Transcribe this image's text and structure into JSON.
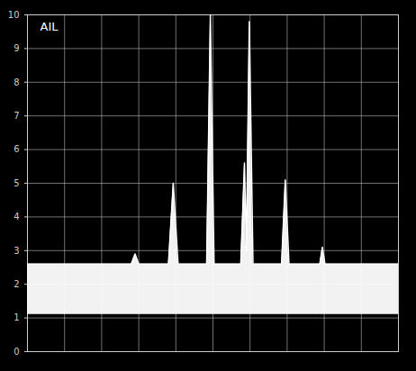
{
  "chart_data": {
    "type": "line",
    "title": "AIL",
    "x": [
      0,
      2.8,
      2.9,
      3.0,
      3.8,
      3.93,
      4.06,
      4.83,
      4.93,
      5.03,
      5.75,
      5.85,
      5.9,
      5.98,
      6.08,
      6.85,
      6.95,
      7.05,
      7.88,
      7.95,
      8.02,
      10
    ],
    "values": [
      2.6,
      2.6,
      2.9,
      2.6,
      2.6,
      5.0,
      2.6,
      2.6,
      10.0,
      2.6,
      2.6,
      5.6,
      3.0,
      9.8,
      2.6,
      2.6,
      5.1,
      2.6,
      2.6,
      3.1,
      2.6,
      2.6
    ],
    "noise_floor": 1.1,
    "color": "#ffffff",
    "xlim": [
      0,
      10
    ],
    "xticks": [
      0,
      1,
      2,
      3,
      4,
      5,
      6,
      7,
      8,
      9,
      10
    ],
    "ylim": [
      0,
      10
    ],
    "yticks": [
      0,
      1,
      2,
      3,
      4,
      5,
      6,
      7,
      8,
      9,
      10
    ],
    "grid": true,
    "tick_labels": "y"
  }
}
